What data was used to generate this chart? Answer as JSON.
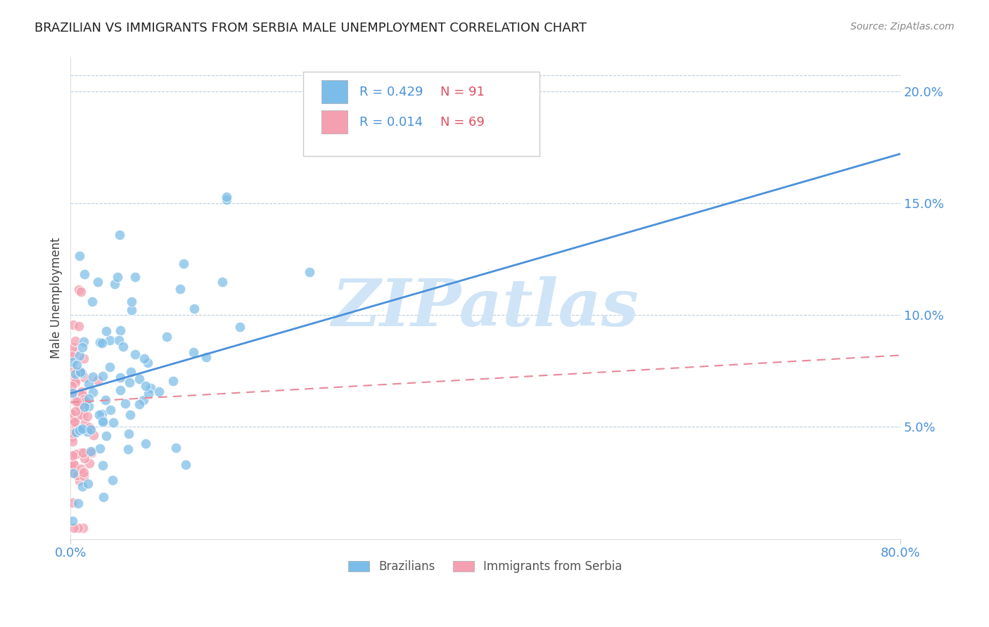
{
  "title": "BRAZILIAN VS IMMIGRANTS FROM SERBIA MALE UNEMPLOYMENT CORRELATION CHART",
  "source": "Source: ZipAtlas.com",
  "ylabel": "Male Unemployment",
  "xlim": [
    0.0,
    0.8
  ],
  "ylim": [
    0.0,
    0.215
  ],
  "yticks_right": [
    0.05,
    0.1,
    0.15,
    0.2
  ],
  "ytick_labels_right": [
    "5.0%",
    "10.0%",
    "15.0%",
    "20.0%"
  ],
  "blue_R": 0.429,
  "blue_N": 91,
  "pink_R": 0.014,
  "pink_N": 69,
  "blue_color": "#7bbde8",
  "pink_color": "#f4a0b0",
  "blue_line_color": "#4a90d9",
  "pink_line_color": "#e88898",
  "legend_label_blue": "Brazilians",
  "legend_label_pink": "Immigrants from Serbia",
  "watermark": "ZIPatlas",
  "watermark_color": "#d0e4f7",
  "grid_color": "#b8cfe0",
  "background_color": "#ffffff",
  "title_fontsize": 13,
  "source_fontsize": 10,
  "axis_tick_color": "#4a90d9",
  "axis_label_color": "#444444",
  "legend_R_color": "#4a90d9",
  "legend_N_color": "#e05060",
  "seed": 12345,
  "blue_line_y0": 0.065,
  "blue_line_y1": 0.172,
  "pink_line_y0": 0.061,
  "pink_line_y1": 0.082
}
